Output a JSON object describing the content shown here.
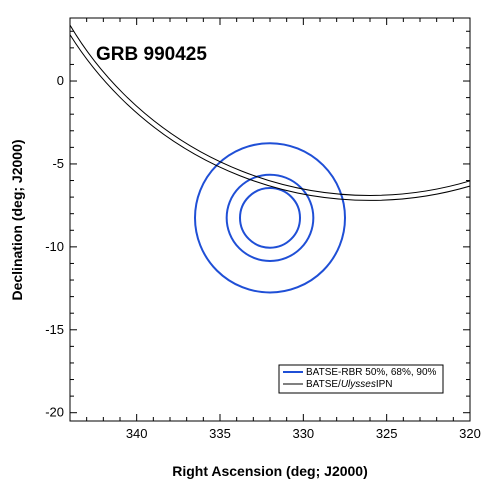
{
  "chart_data": {
    "type": "scatter",
    "title": "GRB 990425",
    "xlabel": "Right Ascension (deg; J2000)",
    "ylabel": "Declination (deg; J2000)",
    "xlim": [
      344,
      320
    ],
    "ylim": [
      -20.5,
      3.8
    ],
    "x_reversed": true,
    "x_ticks": [
      340,
      335,
      330,
      325,
      320
    ],
    "y_ticks": [
      0,
      -5,
      -10,
      -15,
      -20
    ],
    "grid": false,
    "legend_position": "bottom-right",
    "series": [
      {
        "name": "BATSE-RBR 50%, 68%, 90%",
        "color": "#1f4fd6",
        "shape": "circle",
        "center": {
          "ra": 332.0,
          "dec": -8.25
        },
        "radii_deg": [
          1.8,
          2.6,
          4.5
        ]
      },
      {
        "name": "BATSE/Ulysses IPN",
        "color": "#000000",
        "shape": "annulus",
        "center": {
          "ra": 326.0,
          "dec": 14.0
        },
        "radii_deg": [
          20.9,
          21.2
        ]
      }
    ],
    "legend": {
      "entry_1": "BATSE-RBR 50%, 68%, 90%",
      "entry_2_prefix": "BATSE/",
      "entry_2_italic": "Ulysses",
      "entry_2_suffix": "IPN"
    }
  }
}
